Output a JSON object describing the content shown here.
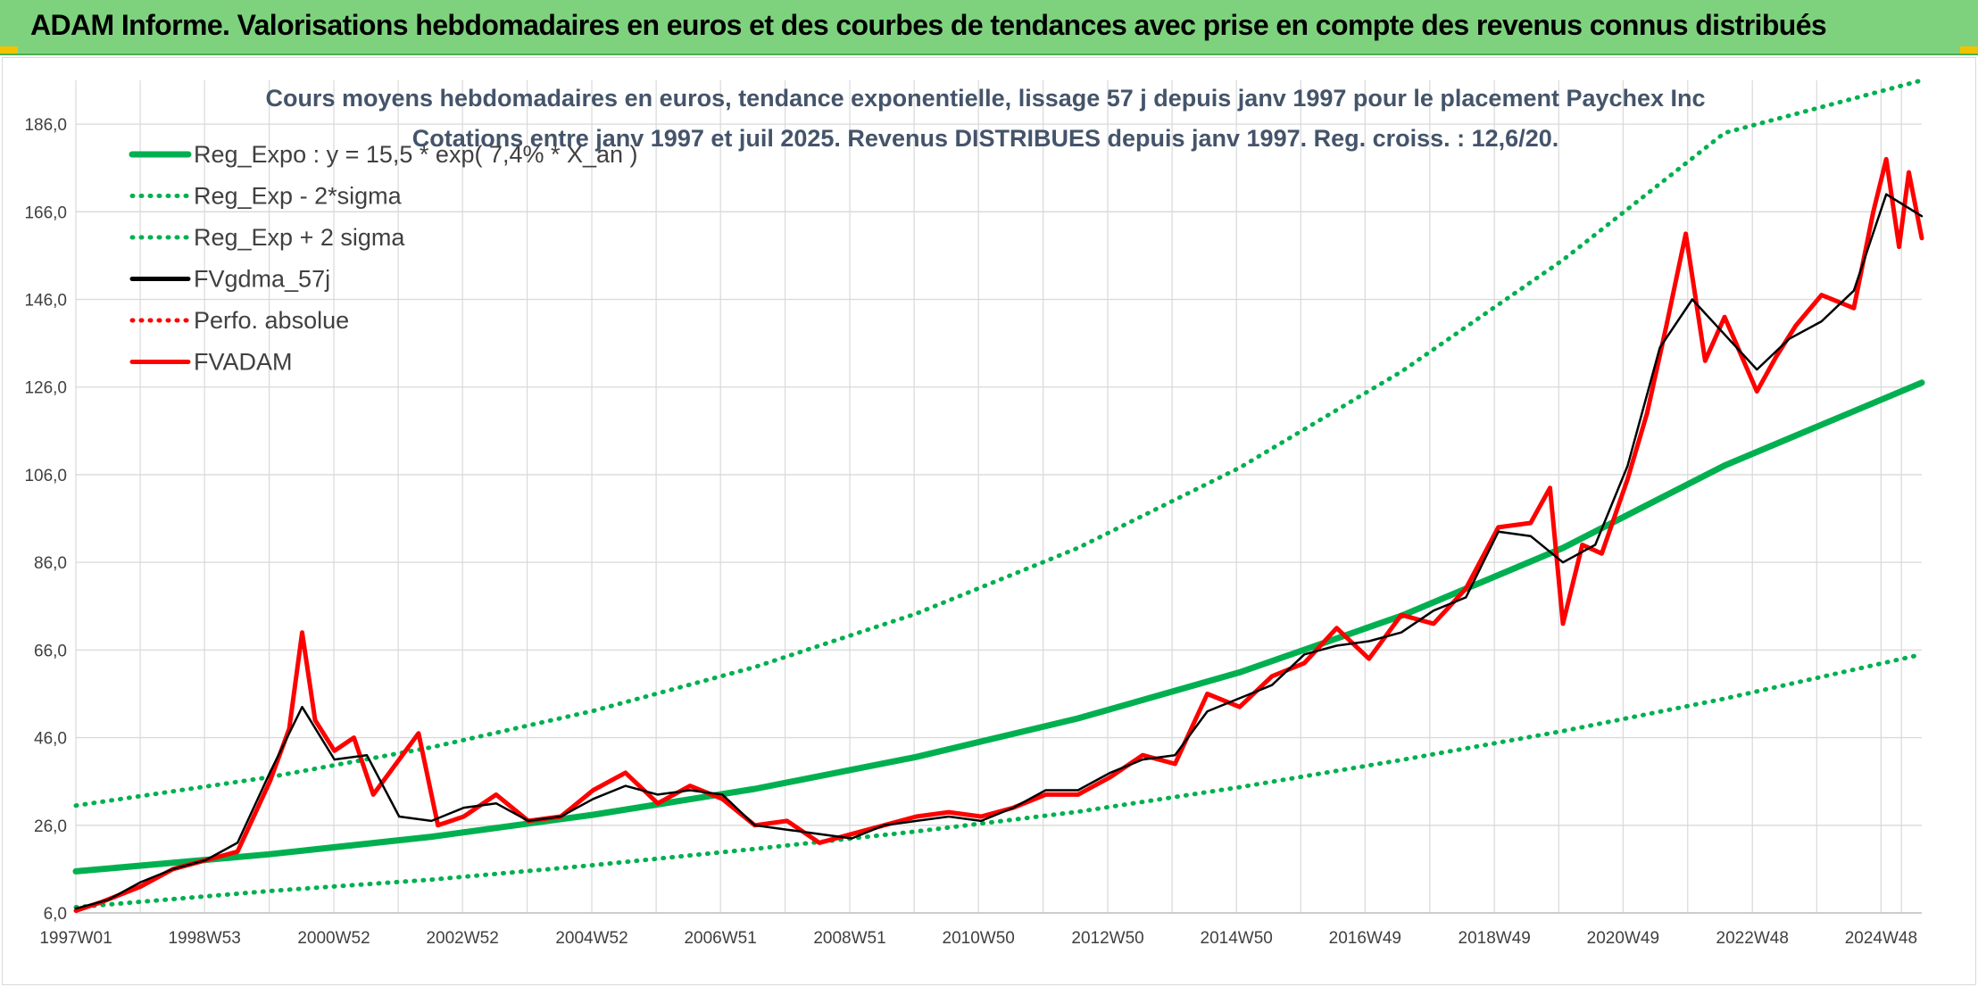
{
  "header": {
    "title": "ADAM Informe. Valorisations hebdomadaires en euros et des courbes de tendances avec prise en compte des revenus connus distribués"
  },
  "colors": {
    "header_bg": "#7ed27e",
    "reg_expo": "#00b050",
    "sigma_bands": "#00b050",
    "fvgdma": "#000000",
    "perfo": "#ff0000",
    "fvadam": "#ff0000",
    "grid": "#d9d9d9",
    "text": "#404040",
    "title": "#44546a"
  },
  "chart_data": {
    "type": "line",
    "title_lines": [
      "Cours moyens hebdomadaires en euros, tendance exponentielle, lissage 57 j depuis janv 1997 pour le placement Paychex Inc",
      "Cotations entre janv 1997 et juil 2025. Revenus DISTRIBUES depuis janv 1997. Reg. croiss. : 12,6/20."
    ],
    "xlabel": "",
    "ylabel": "",
    "ylim": [
      6,
      196
    ],
    "yticks": [
      6,
      26,
      46,
      66,
      86,
      106,
      126,
      146,
      166,
      186
    ],
    "ytick_labels": [
      "6,0",
      "26,0",
      "46,0",
      "66,0",
      "86,0",
      "106,0",
      "126,0",
      "146,0",
      "166,0",
      "186,0"
    ],
    "xlim": [
      1997.0,
      2025.55
    ],
    "xticks": [
      1997.0,
      1998.99,
      2000.99,
      2002.98,
      2004.98,
      2006.97,
      2008.97,
      2010.96,
      2012.96,
      2014.95,
      2016.94,
      2018.94,
      2020.93,
      2022.93,
      2024.92
    ],
    "xtick_labels": [
      "1997W01",
      "1998W53",
      "2000W52",
      "2002W52",
      "2004W52",
      "2006W51",
      "2008W51",
      "2010W50",
      "2012W50",
      "2014W50",
      "2016W49",
      "2018W49",
      "2020W49",
      "2022W48",
      "2024W48"
    ],
    "grid": true,
    "legend_position": "top-left",
    "series": [
      {
        "name": "Reg_Expo : y = 15,5 * exp( 7,4% *  X_an )",
        "style": "solid-thick",
        "color": "#00b050",
        "x": [
          1997.0,
          2000.0,
          2002.5,
          2005.0,
          2007.5,
          2010.0,
          2012.5,
          2015.0,
          2017.5,
          2020.0,
          2022.5,
          2025.55
        ],
        "values": [
          15.5,
          19.4,
          23.4,
          28.4,
          34.3,
          41.6,
          50.4,
          60.9,
          73.8,
          89.3,
          108.1,
          127.0
        ]
      },
      {
        "name": "Reg_Exp - 2*sigma",
        "style": "dotted",
        "color": "#00b050",
        "x": [
          1997.0,
          2000.0,
          2002.5,
          2005.0,
          2007.5,
          2010.0,
          2012.5,
          2015.0,
          2017.5,
          2020.0,
          2022.5,
          2025.55
        ],
        "values": [
          7.3,
          11.0,
          13.6,
          16.9,
          20.6,
          24.6,
          29.1,
          34.7,
          40.9,
          47.5,
          54.9,
          65.0
        ]
      },
      {
        "name": "Reg_Exp + 2 sigma",
        "style": "dotted",
        "color": "#00b050",
        "x": [
          1997.0,
          2000.0,
          2002.5,
          2005.0,
          2007.5,
          2010.0,
          2012.5,
          2015.0,
          2017.5,
          2020.0,
          2022.5,
          2025.55
        ],
        "values": [
          30.5,
          37.0,
          43.8,
          52.1,
          62.1,
          74.3,
          89.3,
          107.6,
          129.5,
          155.0,
          184.0,
          196.0
        ]
      },
      {
        "name": "FVgdma_57j",
        "style": "solid",
        "color": "#000000",
        "x": [
          1997.0,
          1997.5,
          1998.0,
          1998.5,
          1999.0,
          1999.5,
          2000.0,
          2000.5,
          2001.0,
          2001.5,
          2002.0,
          2002.5,
          2003.0,
          2003.5,
          2004.0,
          2004.5,
          2005.0,
          2005.5,
          2006.0,
          2006.5,
          2007.0,
          2007.5,
          2008.0,
          2008.5,
          2009.0,
          2009.5,
          2010.0,
          2010.5,
          2011.0,
          2011.5,
          2012.0,
          2012.5,
          2013.0,
          2013.5,
          2014.0,
          2014.5,
          2015.0,
          2015.5,
          2016.0,
          2016.5,
          2017.0,
          2017.5,
          2018.0,
          2018.5,
          2019.0,
          2019.5,
          2020.0,
          2020.5,
          2021.0,
          2021.5,
          2022.0,
          2022.5,
          2023.0,
          2023.5,
          2024.0,
          2024.5,
          2025.0,
          2025.55
        ],
        "values": [
          7.0,
          9.0,
          13.0,
          16.0,
          18.0,
          22.0,
          38.0,
          53.0,
          41.0,
          42.0,
          28.0,
          27.0,
          30.0,
          31.0,
          27.0,
          28.0,
          32.0,
          35.0,
          33.0,
          34.0,
          33.0,
          26.0,
          25.0,
          24.0,
          23.0,
          26.0,
          27.0,
          28.0,
          27.0,
          30.0,
          34.0,
          34.0,
          38.0,
          41.0,
          42.0,
          52.0,
          55.0,
          58.0,
          65.0,
          67.0,
          68.0,
          70.0,
          75.0,
          78.0,
          93.0,
          92.0,
          86.0,
          90.0,
          108.0,
          135.0,
          146.0,
          138.0,
          130.0,
          137.0,
          141.0,
          148.0,
          170.0,
          165.0
        ]
      },
      {
        "name": "Perfo. absolue",
        "style": "dotted",
        "color": "#ff0000",
        "x": [],
        "values": []
      },
      {
        "name": "FVADAM",
        "style": "solid-thick",
        "color": "#ff0000",
        "x": [
          1997.0,
          1997.4,
          1998.0,
          1998.5,
          1999.0,
          1999.5,
          2000.0,
          2000.3,
          2000.5,
          2000.7,
          2001.0,
          2001.3,
          2001.6,
          2002.0,
          2002.3,
          2002.6,
          2003.0,
          2003.5,
          2004.0,
          2004.5,
          2005.0,
          2005.5,
          2006.0,
          2006.5,
          2007.0,
          2007.5,
          2008.0,
          2008.5,
          2009.0,
          2009.5,
          2010.0,
          2010.5,
          2011.0,
          2011.5,
          2012.0,
          2012.5,
          2013.0,
          2013.5,
          2014.0,
          2014.5,
          2015.0,
          2015.5,
          2016.0,
          2016.5,
          2017.0,
          2017.5,
          2018.0,
          2018.5,
          2019.0,
          2019.5,
          2019.8,
          2020.0,
          2020.3,
          2020.6,
          2021.0,
          2021.3,
          2021.6,
          2021.9,
          2022.2,
          2022.5,
          2023.0,
          2023.3,
          2023.6,
          2024.0,
          2024.5,
          2024.8,
          2025.0,
          2025.2,
          2025.35,
          2025.55
        ],
        "values": [
          6.5,
          8.5,
          12.0,
          16.0,
          18.0,
          20.0,
          36.0,
          48.0,
          70.0,
          50.0,
          43.0,
          46.0,
          33.0,
          41.0,
          47.0,
          26.0,
          28.0,
          33.0,
          27.0,
          28.0,
          34.0,
          38.0,
          31.0,
          35.0,
          32.0,
          26.0,
          27.0,
          22.0,
          24.0,
          26.0,
          28.0,
          29.0,
          28.0,
          30.0,
          33.0,
          33.0,
          37.0,
          42.0,
          40.0,
          56.0,
          53.0,
          60.0,
          63.0,
          71.0,
          64.0,
          74.0,
          72.0,
          80.0,
          94.0,
          95.0,
          103.0,
          72.0,
          90.0,
          88.0,
          105.0,
          120.0,
          140.0,
          161.0,
          132.0,
          142.0,
          125.0,
          133.0,
          140.0,
          147.0,
          144.0,
          166.0,
          178.0,
          158.0,
          175.0,
          160.0
        ]
      }
    ]
  }
}
